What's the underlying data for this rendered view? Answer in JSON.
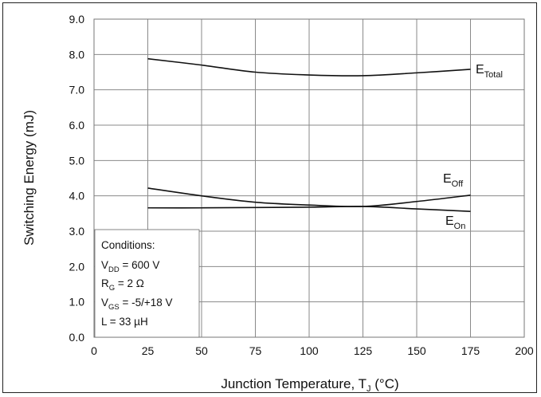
{
  "chart_data": {
    "type": "line",
    "xlabel": {
      "main": "Junction Temperature, T",
      "sub": "J",
      "unit": " (°C)"
    },
    "ylabel": "Switching Energy (mJ)",
    "xlim": [
      0,
      200
    ],
    "ylim": [
      0,
      9
    ],
    "x_ticks": [
      "0",
      "25",
      "50",
      "75",
      "100",
      "125",
      "150",
      "175",
      "200"
    ],
    "y_ticks": [
      "0.0",
      "1.0",
      "2.0",
      "3.0",
      "4.0",
      "5.0",
      "6.0",
      "7.0",
      "8.0",
      "9.0"
    ],
    "grid": true,
    "series": [
      {
        "name": "E",
        "sub": "Total",
        "x": [
          25,
          50,
          75,
          100,
          125,
          150,
          175
        ],
        "y": [
          7.88,
          7.7,
          7.5,
          7.42,
          7.4,
          7.48,
          7.58
        ]
      },
      {
        "name": "E",
        "sub": "Off",
        "x": [
          25,
          50,
          75,
          100,
          125,
          150,
          175
        ],
        "y": [
          4.22,
          4.0,
          3.82,
          3.74,
          3.7,
          3.84,
          4.02
        ]
      },
      {
        "name": "E",
        "sub": "On",
        "x": [
          25,
          50,
          75,
          100,
          125,
          150,
          175
        ],
        "y": [
          3.66,
          3.66,
          3.67,
          3.68,
          3.7,
          3.63,
          3.56
        ]
      }
    ],
    "conditions": {
      "title": "Conditions:",
      "lines": [
        {
          "pre": "V",
          "sub": "DD",
          "post": " = 600 V"
        },
        {
          "pre": "R",
          "sub": "G",
          "post": " = 2 Ω"
        },
        {
          "pre": "V",
          "sub": "GS",
          "post": " = -5/+18 V"
        },
        {
          "pre": "L = 33 µH",
          "sub": "",
          "post": ""
        }
      ]
    }
  }
}
